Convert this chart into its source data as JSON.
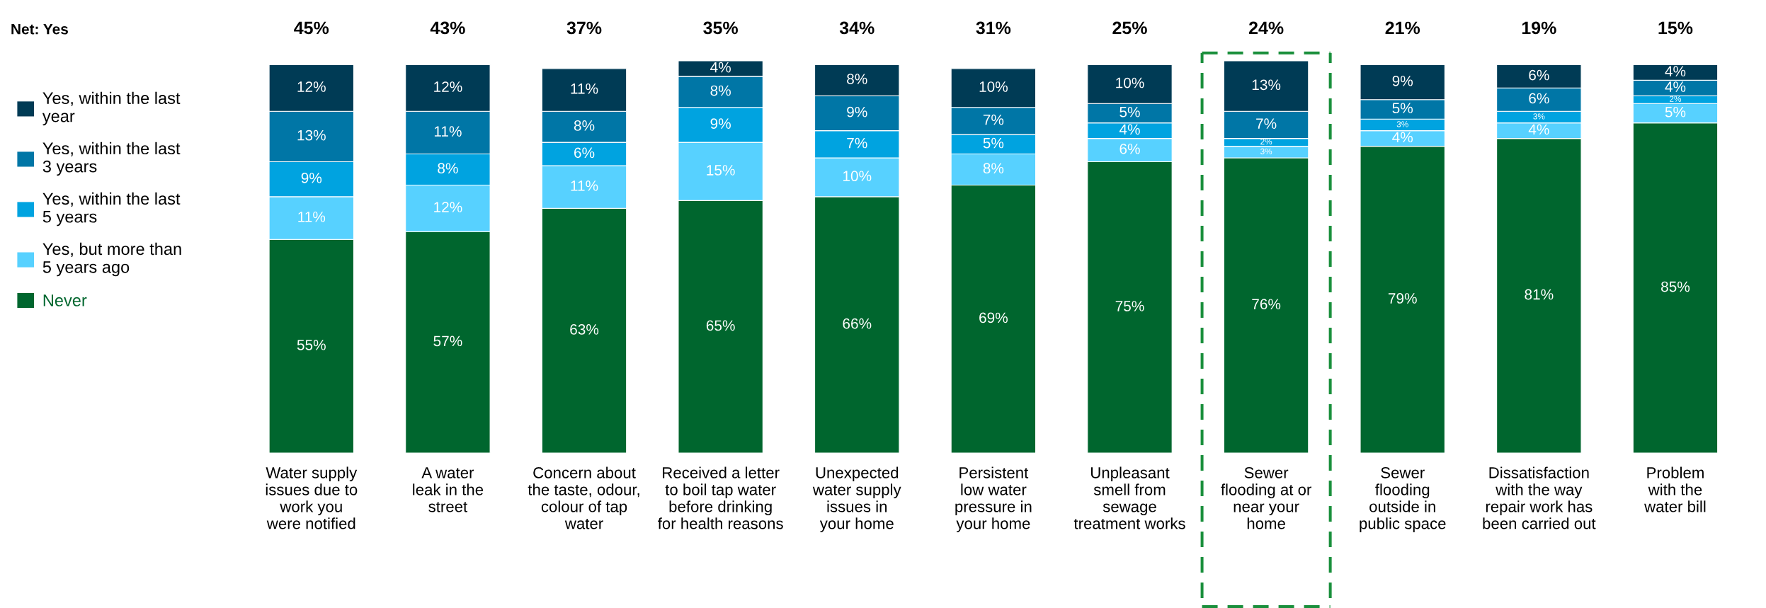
{
  "chart_data": {
    "type": "bar",
    "stacked": true,
    "data_labels": true,
    "legend": "left",
    "grid": false,
    "categories": [
      "Water supply\nissues due to\nwork you\nwere notified",
      "A water\nleak in the\nstreet",
      "Concern about\nthe taste, odour,\ncolour of tap\nwater",
      "Received a letter\nto boil tap water\nbefore drinking\nfor health reasons",
      "Unexpected\nwater supply\nissues in\nyour home",
      "Persistent\nlow water\npressure in\nyour home",
      "Unpleasant\nsmell from\nsewage\ntreatment works",
      "Sewer\nflooding at or\nnear your\nhome",
      "Sewer\nflooding\noutside in\npublic space",
      "Dissatisfaction\nwith the way\nrepair work has\nbeen carried out",
      "Problem\nwith the\nwater bill"
    ],
    "series": [
      {
        "name": "Never",
        "color": "#00662e",
        "values": [
          55,
          57,
          63,
          65,
          66,
          69,
          75,
          76,
          79,
          81,
          85
        ],
        "value_labels": [
          "55%",
          "57%",
          "63%",
          "65%",
          "66%",
          "69%",
          "75%",
          "76%",
          "79%",
          "81%",
          "85%"
        ]
      },
      {
        "name": "Yes, but more than\n5 years ago",
        "color": "#57d1ff",
        "values": [
          11,
          12,
          11,
          15,
          10,
          8,
          6,
          3,
          4,
          4,
          5
        ],
        "value_labels": [
          "11%",
          "12%",
          "11%",
          "15%",
          "10%",
          "8%",
          "6%",
          "3%",
          "4%",
          "4%",
          "5%"
        ]
      },
      {
        "name": "Yes, within the last\n5 years",
        "color": "#00a3e0",
        "values": [
          9,
          8,
          6,
          9,
          7,
          5,
          4,
          2,
          3,
          3,
          2
        ],
        "value_labels": [
          "9%",
          "8%",
          "6%",
          "9%",
          "7%",
          "5%",
          "4%",
          "2%",
          "3%",
          "3%",
          "2%"
        ]
      },
      {
        "name": "Yes, within the last\n3 years",
        "color": "#0076a6",
        "values": [
          13,
          11,
          8,
          8,
          9,
          7,
          5,
          7,
          5,
          6,
          4
        ],
        "value_labels": [
          "13%",
          "11%",
          "8%",
          "8%",
          "9%",
          "7%",
          "5%",
          "7%",
          "5%",
          "6%",
          "4%"
        ]
      },
      {
        "name": "Yes, within the last\nyear",
        "color": "#003b55",
        "values": [
          12,
          12,
          11,
          4,
          8,
          10,
          10,
          13,
          9,
          6,
          4
        ],
        "value_labels": [
          "12%",
          "12%",
          "11%",
          "4%",
          "8%",
          "10%",
          "10%",
          "13%",
          "9%",
          "6%",
          "4%"
        ]
      }
    ],
    "annotations": [
      "Net: Yes",
      "45%",
      "43%",
      "37%",
      "35%",
      "34%",
      "31%",
      "25%",
      "24%",
      "21%",
      "19%",
      "15%"
    ]
  }
}
